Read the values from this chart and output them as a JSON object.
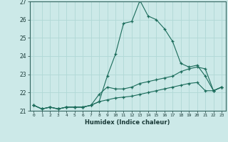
{
  "x": [
    0,
    1,
    2,
    3,
    4,
    5,
    6,
    7,
    8,
    9,
    10,
    11,
    12,
    13,
    14,
    15,
    16,
    17,
    18,
    19,
    20,
    21,
    22,
    23
  ],
  "line1": [
    21.3,
    21.1,
    21.2,
    21.1,
    21.2,
    21.2,
    21.2,
    21.3,
    21.5,
    22.9,
    24.1,
    25.8,
    25.9,
    27.05,
    26.2,
    26.0,
    25.5,
    24.8,
    23.6,
    23.4,
    23.5,
    22.9,
    22.1,
    22.3
  ],
  "line2": [
    21.3,
    21.1,
    21.2,
    21.1,
    21.2,
    21.2,
    21.2,
    21.3,
    21.9,
    22.3,
    22.2,
    22.2,
    22.3,
    22.5,
    22.6,
    22.7,
    22.8,
    22.9,
    23.15,
    23.3,
    23.4,
    23.3,
    22.1,
    22.3
  ],
  "line3": [
    21.3,
    21.1,
    21.2,
    21.1,
    21.2,
    21.2,
    21.2,
    21.3,
    21.5,
    21.6,
    21.7,
    21.75,
    21.8,
    21.9,
    22.0,
    22.1,
    22.2,
    22.3,
    22.4,
    22.5,
    22.55,
    22.1,
    22.1,
    22.3
  ],
  "line_color": "#1a6b5a",
  "bg_color": "#cce9e8",
  "grid_color": "#b0d8d6",
  "xlabel": "Humidex (Indice chaleur)",
  "ylim": [
    21,
    27
  ],
  "xlim": [
    -0.5,
    23.5
  ],
  "yticks": [
    21,
    22,
    23,
    24,
    25,
    26,
    27
  ],
  "xticks": [
    0,
    1,
    2,
    3,
    4,
    5,
    6,
    7,
    8,
    9,
    10,
    11,
    12,
    13,
    14,
    15,
    16,
    17,
    18,
    19,
    20,
    21,
    22,
    23
  ]
}
